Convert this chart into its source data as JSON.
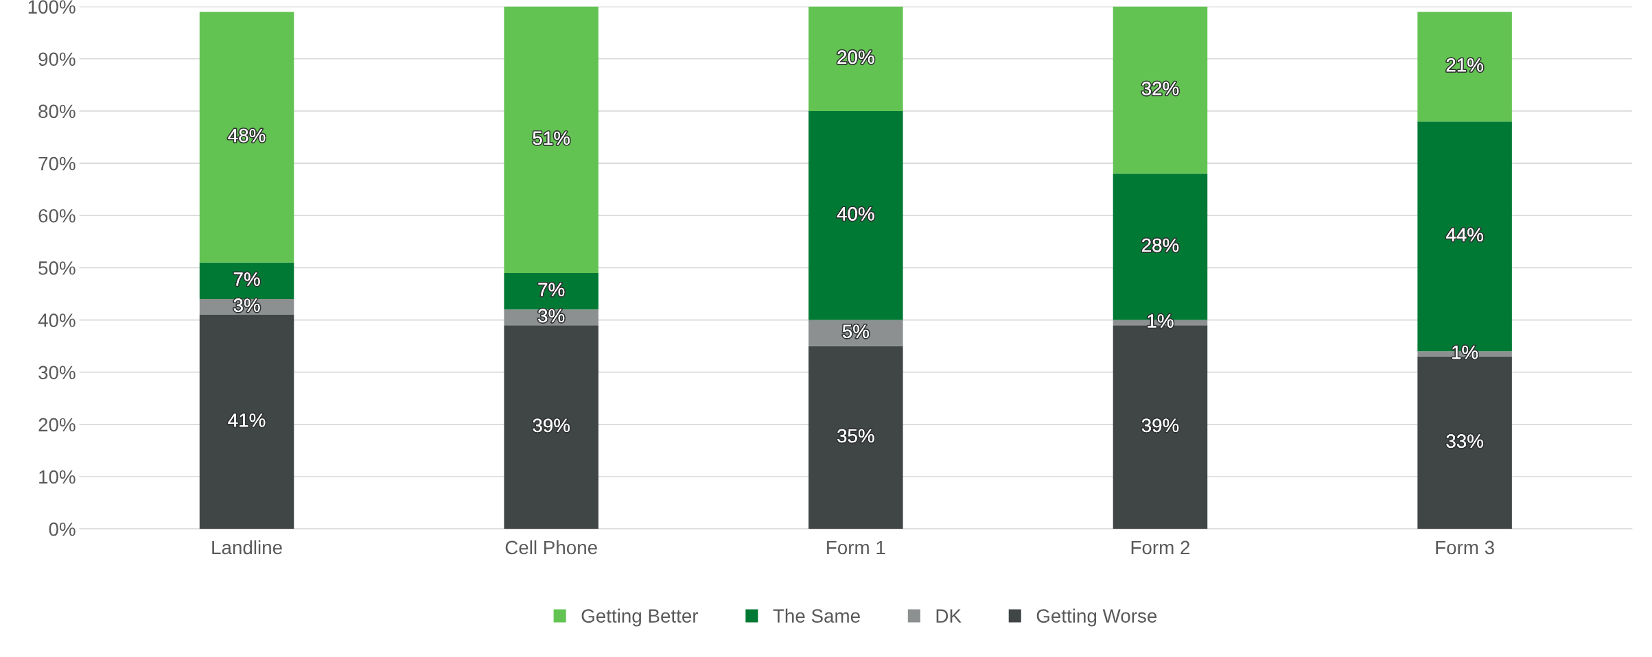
{
  "chart_data": {
    "type": "bar",
    "stacked": true,
    "categories": [
      "Landline",
      "Cell Phone",
      "Form 1",
      "Form 2",
      "Form 3"
    ],
    "series": [
      {
        "name": "Getting Worse",
        "color": "#404545",
        "values": [
          41,
          39,
          35,
          39,
          33
        ],
        "value_labels": [
          "41%",
          "39%",
          "35%",
          "39%",
          "33%"
        ]
      },
      {
        "name": "DK",
        "color": "#8c9090",
        "values": [
          3,
          3,
          5,
          1,
          1
        ],
        "value_labels": [
          "3%",
          "3%",
          "5%",
          "1%",
          "1%"
        ]
      },
      {
        "name": "The Same",
        "color": "#007934",
        "values": [
          7,
          7,
          40,
          28,
          44
        ],
        "value_labels": [
          "7%",
          "7%",
          "40%",
          "28%",
          "44%"
        ]
      },
      {
        "name": "Getting Better",
        "color": "#63c352",
        "values": [
          48,
          51,
          20,
          32,
          21
        ],
        "value_labels": [
          "48%",
          "51%",
          "20%",
          "32%",
          "21%"
        ]
      }
    ],
    "ylim": [
      0,
      100
    ],
    "yticks": [
      {
        "value": 0,
        "label": "0%"
      },
      {
        "value": 10,
        "label": "10%"
      },
      {
        "value": 20,
        "label": "20%"
      },
      {
        "value": 30,
        "label": "30%"
      },
      {
        "value": 40,
        "label": "40%"
      },
      {
        "value": 50,
        "label": "50%"
      },
      {
        "value": 60,
        "label": "60%"
      },
      {
        "value": 70,
        "label": "70%"
      },
      {
        "value": 80,
        "label": "80%"
      },
      {
        "value": 90,
        "label": "90%"
      },
      {
        "value": 100,
        "label": "100%"
      }
    ],
    "grid": "y",
    "legend": "bottom"
  }
}
